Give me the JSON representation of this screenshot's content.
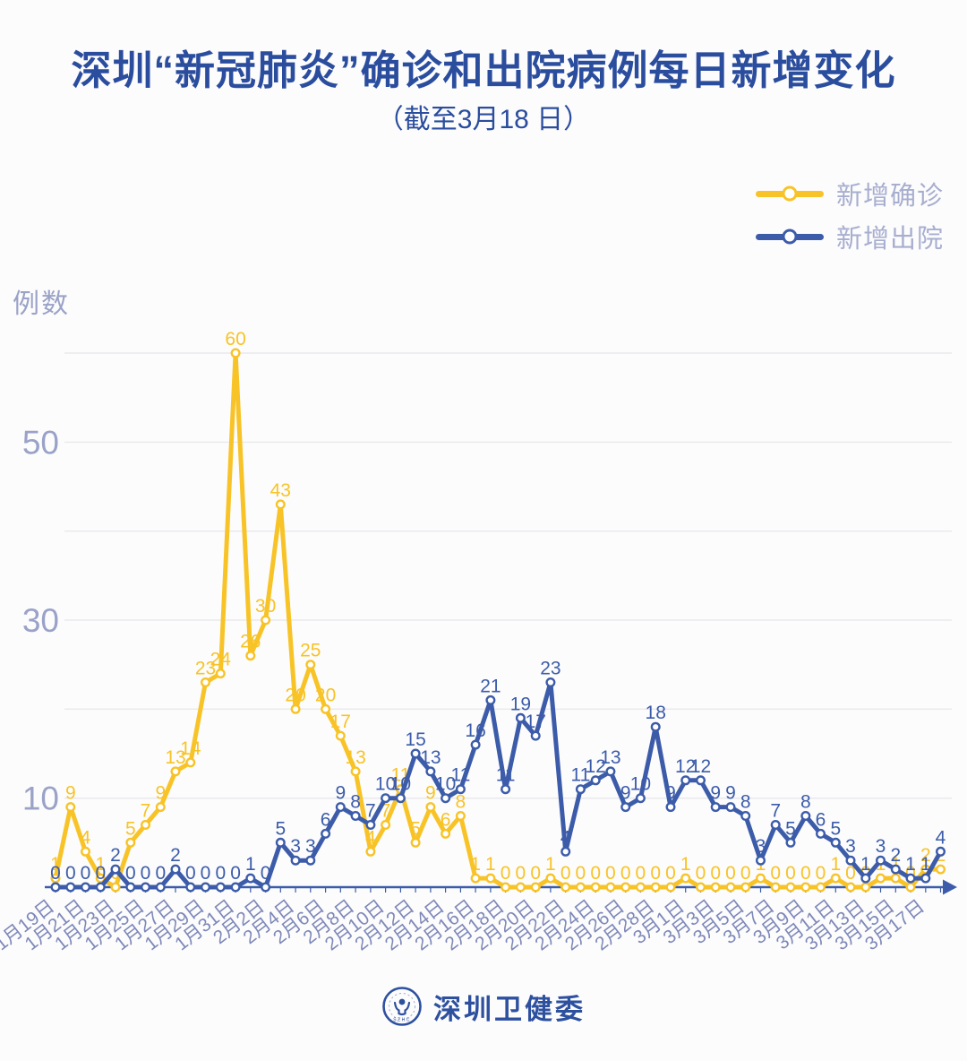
{
  "page": {
    "background": "#fcfcfc"
  },
  "header": {
    "title": "深圳“新冠肺炎”确诊和出院病例每日新增变化",
    "subtitle": "（截至3月18 日）"
  },
  "legend": {
    "items": [
      {
        "label": "新增确诊",
        "color": "#f8c327"
      },
      {
        "label": "新增出院",
        "color": "#3c5caa"
      }
    ]
  },
  "chart_data": {
    "type": "line",
    "title": "深圳“新冠肺炎”确诊和出院病例每日新增变化",
    "subtitle": "（截至3月18 日）",
    "ylabel": "例数",
    "ylim": [
      0,
      63
    ],
    "grid": "horizontal",
    "gridlines": [
      10,
      20,
      30,
      40,
      50,
      60
    ],
    "ytick_labels": [
      50,
      30,
      10
    ],
    "legend_position": "top-right",
    "x_tick_every": 2,
    "x": [
      "1月19日",
      "1月20日",
      "1月21日",
      "1月22日",
      "1月23日",
      "1月24日",
      "1月25日",
      "1月26日",
      "1月27日",
      "1月28日",
      "1月29日",
      "1月30日",
      "1月31日",
      "2月1日",
      "2月2日",
      "2月3日",
      "2月4日",
      "2月5日",
      "2月6日",
      "2月7日",
      "2月8日",
      "2月9日",
      "2月10日",
      "2月11日",
      "2月12日",
      "2月13日",
      "2月14日",
      "2月15日",
      "2月16日",
      "2月17日",
      "2月18日",
      "2月19日",
      "2月20日",
      "2月21日",
      "2月22日",
      "2月23日",
      "2月24日",
      "2月25日",
      "2月26日",
      "2月27日",
      "2月28日",
      "2月29日",
      "3月1日",
      "3月2日",
      "3月3日",
      "3月4日",
      "3月5日",
      "3月6日",
      "3月7日",
      "3月8日",
      "3月9日",
      "3月10日",
      "3月11日",
      "3月12日",
      "3月13日",
      "3月14日",
      "3月15日",
      "3月16日",
      "3月17日",
      "3月18日"
    ],
    "series": [
      {
        "name": "新增确诊",
        "color": "#f8c327",
        "values": [
          1,
          9,
          4,
          1,
          0,
          5,
          7,
          9,
          13,
          14,
          23,
          24,
          60,
          26,
          30,
          43,
          20,
          25,
          20,
          17,
          13,
          4,
          7,
          11,
          5,
          9,
          6,
          8,
          1,
          1,
          0,
          0,
          0,
          1,
          0,
          0,
          0,
          0,
          0,
          0,
          0,
          0,
          1,
          0,
          0,
          0,
          0,
          1,
          0,
          0,
          0,
          0,
          1,
          0,
          0,
          1,
          1,
          0,
          2,
          2
        ]
      },
      {
        "name": "新增出院",
        "color": "#3c5caa",
        "values": [
          0,
          0,
          0,
          0,
          2,
          0,
          0,
          0,
          2,
          0,
          0,
          0,
          0,
          1,
          0,
          5,
          3,
          3,
          6,
          9,
          8,
          7,
          10,
          10,
          15,
          13,
          10,
          11,
          16,
          21,
          11,
          19,
          17,
          23,
          4,
          11,
          12,
          13,
          9,
          10,
          18,
          9,
          12,
          12,
          9,
          9,
          8,
          3,
          7,
          5,
          8,
          6,
          5,
          3,
          1,
          3,
          2,
          1,
          1,
          4
        ]
      }
    ]
  },
  "footer": {
    "brand": "深圳卫健委",
    "logo_text": "SZHC"
  }
}
